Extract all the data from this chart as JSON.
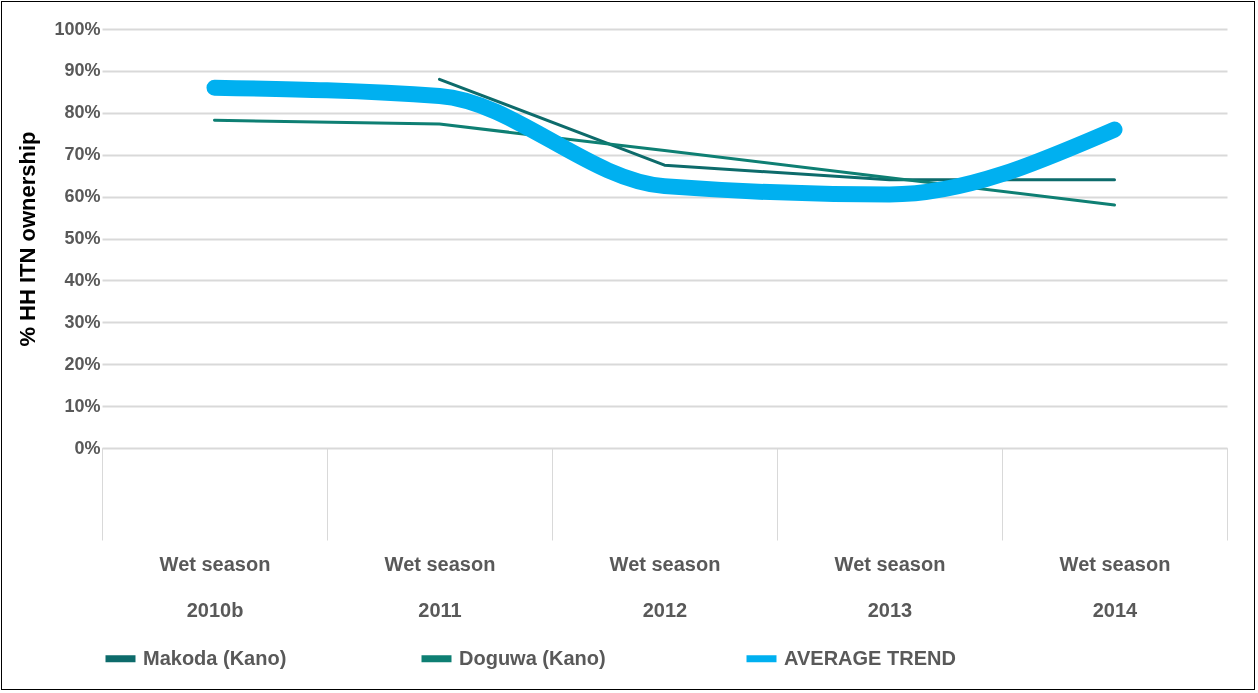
{
  "chart_data": {
    "type": "line",
    "ylabel": "% HH ITN ownership",
    "categories": [
      "Wet season\n2010b",
      "Wet season\n2011",
      "Wet season\n2012",
      "Wet season\n2013",
      "Wet season\n2014"
    ],
    "series": [
      {
        "name": "Makoda (Kano)",
        "color": "#0d6b6b",
        "values": [
          null,
          88,
          67.5,
          64,
          64
        ]
      },
      {
        "name": "Doguwa  (Kano)",
        "color": "#0e7f73",
        "values": [
          78.2,
          77.3,
          71,
          64.5,
          58
        ]
      },
      {
        "name": "AVERAGE TREND",
        "color": "#00b0f0",
        "values": [
          86,
          84,
          62.5,
          60.5,
          76
        ]
      }
    ],
    "ylim": [
      0,
      100
    ],
    "yticks": [
      {
        "value": 0,
        "label": "0%"
      },
      {
        "value": 10,
        "label": "10%"
      },
      {
        "value": 20,
        "label": "20%"
      },
      {
        "value": 30,
        "label": "30%"
      },
      {
        "value": 40,
        "label": "40%"
      },
      {
        "value": 50,
        "label": "50%"
      },
      {
        "value": 60,
        "label": "60%"
      },
      {
        "value": 70,
        "label": "70%"
      },
      {
        "value": 80,
        "label": "80%"
      },
      {
        "value": 90,
        "label": "90%"
      },
      {
        "value": 100,
        "label": "100%"
      }
    ],
    "grid": "y",
    "legend": "bottom",
    "line_style": "solid",
    "marker": "none"
  }
}
